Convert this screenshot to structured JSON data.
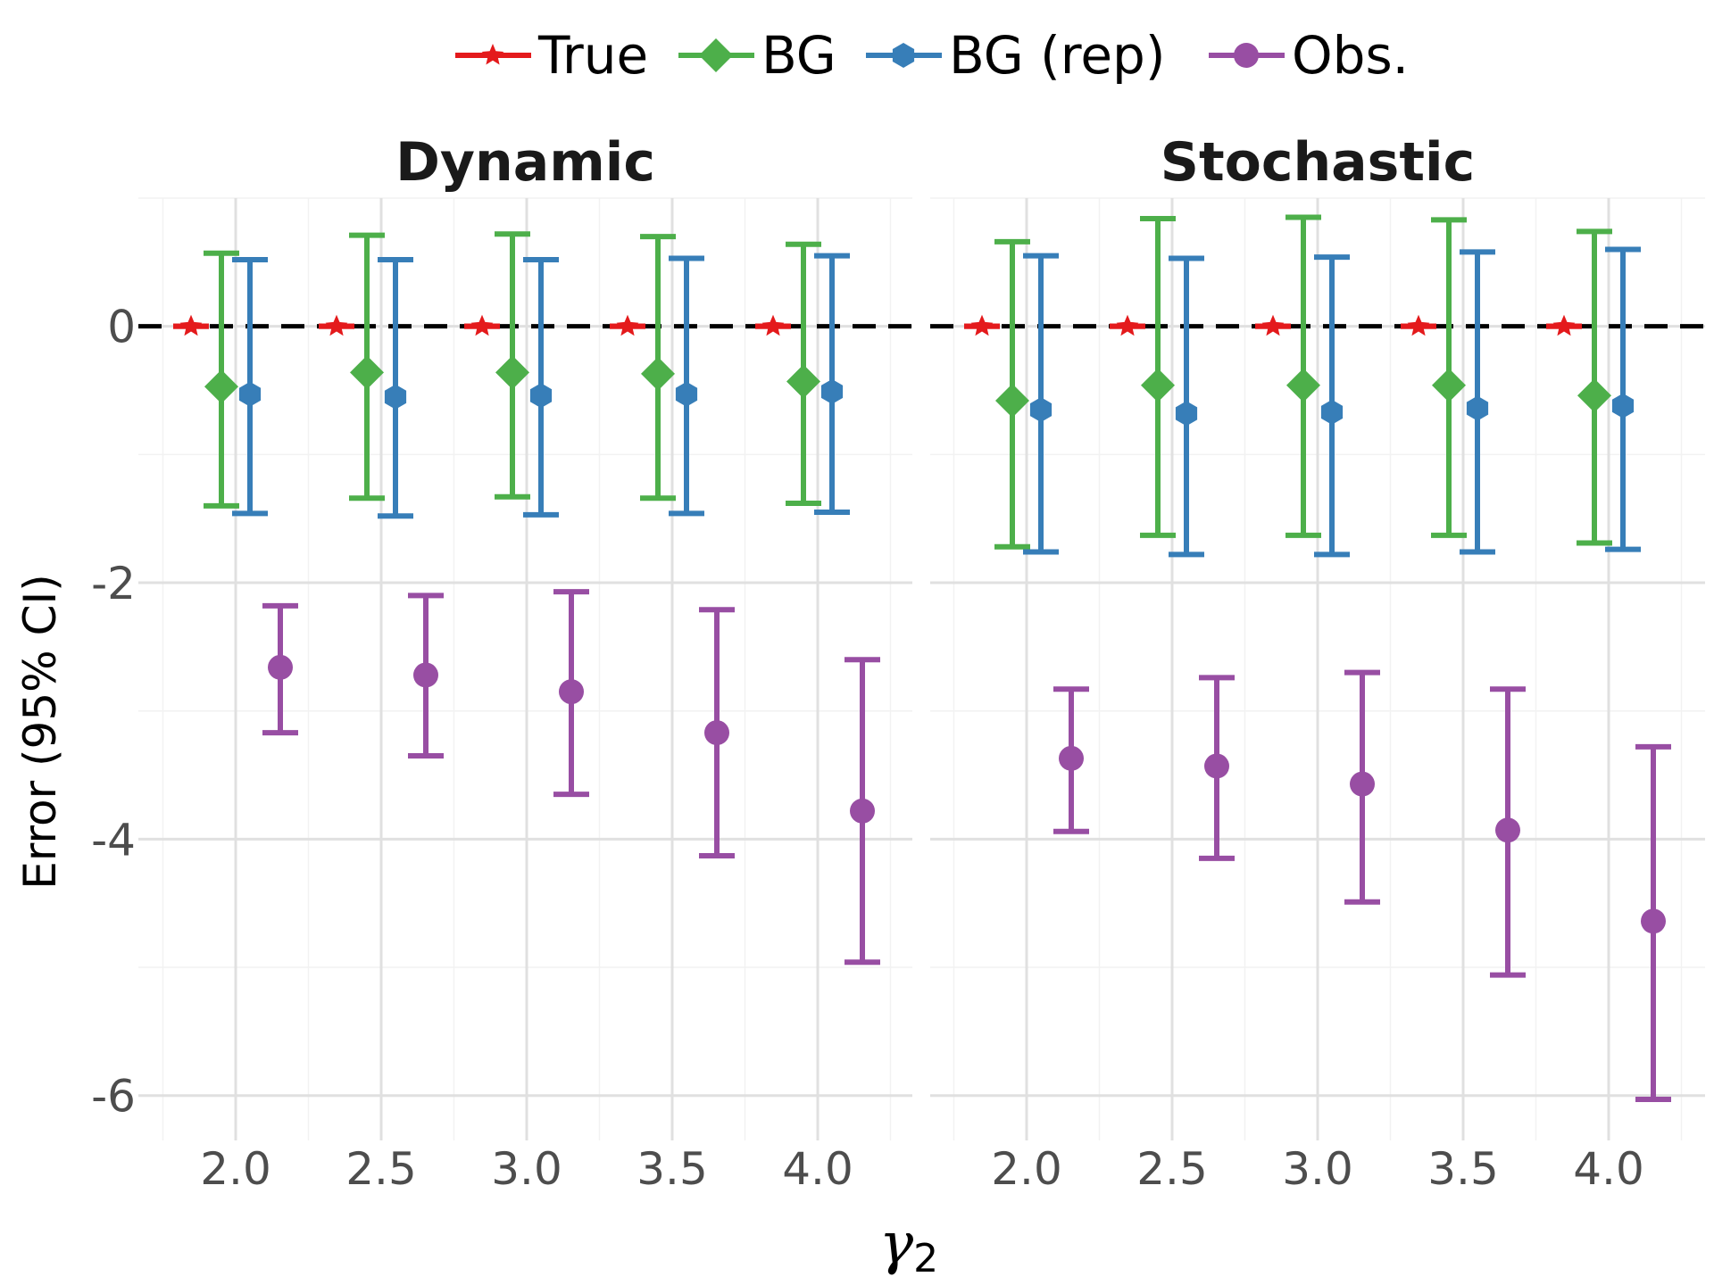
{
  "chart_data": {
    "type": "scatter",
    "subtype": "point-range with 95% CI error bars, faceted",
    "xlabel_symbol": "γ",
    "xlabel_subscript": "2",
    "ylabel": "Error (95% CI)",
    "ylim": [
      -6.35,
      1.0
    ],
    "yticks": [
      0,
      -2,
      -4,
      -6
    ],
    "ytick_labels": [
      "0",
      "-2",
      "-4",
      "-6"
    ],
    "categories": [
      "2.0",
      "2.5",
      "3.0",
      "3.5",
      "4.0"
    ],
    "reference_line": {
      "y": 0,
      "style": "dashed",
      "color": "#000000"
    },
    "grid": true,
    "legend": {
      "position": "top",
      "entries": [
        {
          "name": "True",
          "color": "#e41a1c",
          "marker": "star"
        },
        {
          "name": "BG",
          "color": "#4daf4a",
          "marker": "diamond"
        },
        {
          "name": "BG (rep)",
          "color": "#377eb8",
          "marker": "hexagon"
        },
        {
          "name": "Obs.",
          "color": "#984ea3",
          "marker": "circle"
        }
      ]
    },
    "facets": [
      {
        "title": "Dynamic",
        "series": [
          {
            "name": "True",
            "values": [
              0,
              0,
              0,
              0,
              0
            ],
            "lower": [
              0,
              0,
              0,
              0,
              0
            ],
            "upper": [
              0,
              0,
              0,
              0,
              0
            ]
          },
          {
            "name": "BG",
            "values": [
              -0.47,
              -0.36,
              -0.36,
              -0.37,
              -0.43
            ],
            "lower": [
              -1.4,
              -1.34,
              -1.33,
              -1.34,
              -1.38
            ],
            "upper": [
              0.57,
              0.71,
              0.72,
              0.7,
              0.64
            ]
          },
          {
            "name": "BG (rep)",
            "values": [
              -0.53,
              -0.55,
              -0.54,
              -0.53,
              -0.51
            ],
            "lower": [
              -1.46,
              -1.48,
              -1.47,
              -1.46,
              -1.45
            ],
            "upper": [
              0.52,
              0.52,
              0.52,
              0.53,
              0.55
            ]
          },
          {
            "name": "Obs.",
            "values": [
              -2.66,
              -2.72,
              -2.85,
              -3.17,
              -3.78
            ],
            "lower": [
              -3.17,
              -3.35,
              -3.65,
              -4.13,
              -4.96
            ],
            "upper": [
              -2.18,
              -2.1,
              -2.07,
              -2.21,
              -2.6
            ]
          }
        ]
      },
      {
        "title": "Stochastic",
        "series": [
          {
            "name": "True",
            "values": [
              0,
              0,
              0,
              0,
              0
            ],
            "lower": [
              0,
              0,
              0,
              0,
              0
            ],
            "upper": [
              0,
              0,
              0,
              0,
              0
            ]
          },
          {
            "name": "BG",
            "values": [
              -0.58,
              -0.46,
              -0.46,
              -0.46,
              -0.54
            ],
            "lower": [
              -1.72,
              -1.63,
              -1.63,
              -1.63,
              -1.69
            ],
            "upper": [
              0.66,
              0.84,
              0.85,
              0.83,
              0.74
            ]
          },
          {
            "name": "BG (rep)",
            "values": [
              -0.65,
              -0.68,
              -0.67,
              -0.64,
              -0.62
            ],
            "lower": [
              -1.76,
              -1.78,
              -1.78,
              -1.76,
              -1.74
            ],
            "upper": [
              0.55,
              0.53,
              0.54,
              0.58,
              0.6
            ]
          },
          {
            "name": "Obs.",
            "values": [
              -3.37,
              -3.43,
              -3.57,
              -3.93,
              -4.64
            ],
            "lower": [
              -3.94,
              -4.15,
              -4.49,
              -5.06,
              -6.03
            ],
            "upper": [
              -2.83,
              -2.74,
              -2.7,
              -2.83,
              -3.28
            ]
          }
        ]
      }
    ]
  }
}
